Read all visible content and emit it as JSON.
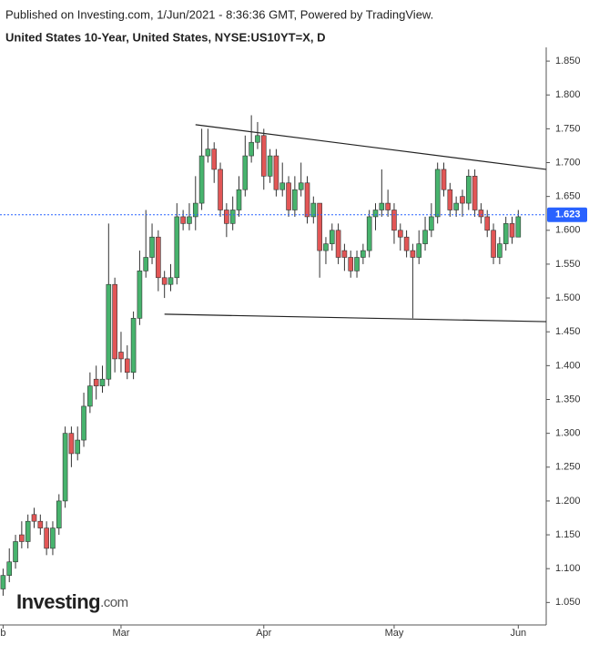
{
  "chart_data": {
    "type": "candlestick",
    "publisher": "Published on Investing.com, 1/Jun/2021 - 8:36:36 GMT, Powered by TradingView.",
    "title": "United States 10-Year, United States, NYSE:US10YT=X, D",
    "logo": {
      "name": "Investing",
      "suffix": ".com"
    },
    "up_color": "#47b36d",
    "down_color": "#e25656",
    "open": [
      1.07,
      1.09,
      1.11,
      1.15,
      1.14,
      1.18,
      1.17,
      1.16,
      1.13,
      1.16,
      1.2,
      1.3,
      1.27,
      1.29,
      1.34,
      1.38,
      1.37,
      1.38,
      1.52,
      1.42,
      1.41,
      1.39,
      1.47,
      1.54,
      1.56,
      1.59,
      1.53,
      1.52,
      1.53,
      1.62,
      1.61,
      1.62,
      1.64,
      1.71,
      1.72,
      1.69,
      1.63,
      1.61,
      1.63,
      1.66,
      1.71,
      1.73,
      1.74,
      1.68,
      1.71,
      1.66,
      1.67,
      1.63,
      1.66,
      1.67,
      1.62,
      1.64,
      1.57,
      1.58,
      1.6,
      1.57,
      1.56,
      1.54,
      1.56,
      1.57,
      1.62,
      1.63,
      1.64,
      1.63,
      1.6,
      1.59,
      1.57,
      1.56,
      1.58,
      1.6,
      1.62,
      1.69,
      1.66,
      1.63,
      1.65,
      1.64,
      1.68,
      1.63,
      1.62,
      1.6,
      1.56,
      1.58,
      1.61,
      1.59
    ],
    "high": [
      1.1,
      1.13,
      1.15,
      1.17,
      1.18,
      1.19,
      1.18,
      1.17,
      1.17,
      1.21,
      1.31,
      1.31,
      1.31,
      1.36,
      1.39,
      1.4,
      1.4,
      1.61,
      1.53,
      1.45,
      1.43,
      1.48,
      1.57,
      1.63,
      1.61,
      1.6,
      1.54,
      1.55,
      1.64,
      1.63,
      1.64,
      1.68,
      1.75,
      1.75,
      1.73,
      1.7,
      1.64,
      1.65,
      1.68,
      1.74,
      1.77,
      1.76,
      1.75,
      1.72,
      1.72,
      1.7,
      1.68,
      1.68,
      1.7,
      1.68,
      1.65,
      1.64,
      1.59,
      1.61,
      1.61,
      1.58,
      1.57,
      1.57,
      1.58,
      1.63,
      1.64,
      1.69,
      1.66,
      1.64,
      1.61,
      1.6,
      1.58,
      1.6,
      1.62,
      1.64,
      1.7,
      1.7,
      1.67,
      1.65,
      1.66,
      1.69,
      1.69,
      1.64,
      1.63,
      1.61,
      1.59,
      1.62,
      1.62,
      1.63
    ],
    "low": [
      1.06,
      1.08,
      1.1,
      1.13,
      1.13,
      1.16,
      1.15,
      1.12,
      1.12,
      1.15,
      1.19,
      1.25,
      1.26,
      1.28,
      1.33,
      1.35,
      1.36,
      1.37,
      1.39,
      1.39,
      1.38,
      1.38,
      1.46,
      1.53,
      1.55,
      1.51,
      1.5,
      1.51,
      1.52,
      1.6,
      1.6,
      1.6,
      1.63,
      1.7,
      1.67,
      1.62,
      1.59,
      1.6,
      1.62,
      1.65,
      1.7,
      1.72,
      1.66,
      1.67,
      1.65,
      1.65,
      1.62,
      1.62,
      1.65,
      1.61,
      1.61,
      1.53,
      1.55,
      1.57,
      1.55,
      1.54,
      1.53,
      1.53,
      1.55,
      1.56,
      1.6,
      1.62,
      1.62,
      1.58,
      1.57,
      1.56,
      1.47,
      1.55,
      1.57,
      1.59,
      1.61,
      1.65,
      1.62,
      1.62,
      1.62,
      1.63,
      1.62,
      1.61,
      1.59,
      1.55,
      1.55,
      1.57,
      1.58,
      1.59
    ],
    "close": [
      1.09,
      1.11,
      1.14,
      1.14,
      1.17,
      1.17,
      1.16,
      1.13,
      1.16,
      1.2,
      1.3,
      1.27,
      1.29,
      1.34,
      1.37,
      1.37,
      1.38,
      1.52,
      1.41,
      1.41,
      1.39,
      1.47,
      1.54,
      1.56,
      1.59,
      1.53,
      1.52,
      1.53,
      1.62,
      1.61,
      1.62,
      1.64,
      1.71,
      1.72,
      1.69,
      1.63,
      1.61,
      1.63,
      1.66,
      1.71,
      1.73,
      1.74,
      1.68,
      1.71,
      1.66,
      1.67,
      1.63,
      1.66,
      1.67,
      1.62,
      1.64,
      1.57,
      1.58,
      1.6,
      1.56,
      1.56,
      1.54,
      1.56,
      1.57,
      1.62,
      1.63,
      1.64,
      1.63,
      1.6,
      1.59,
      1.57,
      1.56,
      1.58,
      1.6,
      1.62,
      1.69,
      1.66,
      1.63,
      1.64,
      1.64,
      1.68,
      1.63,
      1.62,
      1.6,
      1.56,
      1.58,
      1.61,
      1.59,
      1.62
    ],
    "last_price": 1.623,
    "last_price_color": "#2962ff",
    "trend_lines": [
      {
        "x": [
          31,
          87.5
        ],
        "y": [
          1.756,
          1.69
        ]
      },
      {
        "x": [
          26,
          87.5
        ],
        "y": [
          1.476,
          1.465
        ]
      }
    ],
    "xlim": [
      -0.5,
      87.5
    ],
    "xticks": [
      {
        "value": 0,
        "label": "b"
      },
      {
        "value": 19,
        "label": "Mar"
      },
      {
        "value": 42,
        "label": "Apr"
      },
      {
        "value": 63,
        "label": "May"
      },
      {
        "value": 83,
        "label": "Jun"
      }
    ],
    "ylim": [
      1.0168,
      1.8703
    ],
    "yticks": [
      {
        "value": 1.05,
        "label": "1.050"
      },
      {
        "value": 1.1,
        "label": "1.100"
      },
      {
        "value": 1.15,
        "label": "1.150"
      },
      {
        "value": 1.2,
        "label": "1.200"
      },
      {
        "value": 1.25,
        "label": "1.250"
      },
      {
        "value": 1.3,
        "label": "1.300"
      },
      {
        "value": 1.35,
        "label": "1.350"
      },
      {
        "value": 1.4,
        "label": "1.400"
      },
      {
        "value": 1.45,
        "label": "1.450"
      },
      {
        "value": 1.5,
        "label": "1.500"
      },
      {
        "value": 1.55,
        "label": "1.550"
      },
      {
        "value": 1.6,
        "label": "1.600"
      },
      {
        "value": 1.65,
        "label": "1.650"
      },
      {
        "value": 1.7,
        "label": "1.700"
      },
      {
        "value": 1.75,
        "label": "1.750"
      },
      {
        "value": 1.8,
        "label": "1.800"
      },
      {
        "value": 1.85,
        "label": "1.850"
      }
    ]
  }
}
